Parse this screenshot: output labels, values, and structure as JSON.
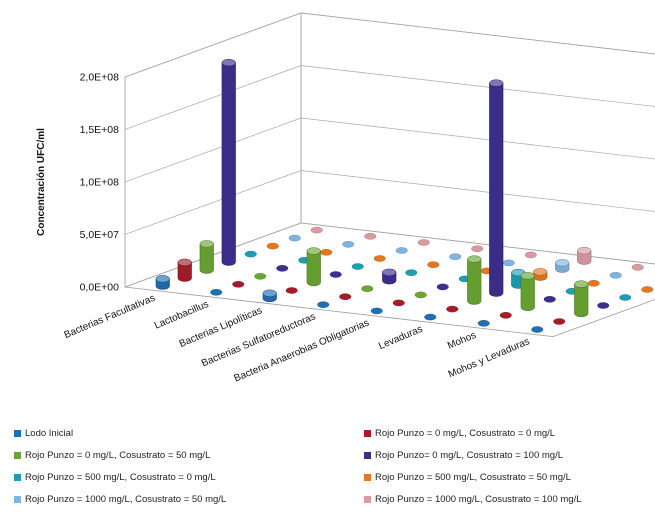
{
  "chart_data": {
    "type": "bar3d",
    "ylabel": "Concentración UFC/ml",
    "y_ticks": [
      "0,0E+00",
      "5,0E+07",
      "1,0E+08",
      "1,5E+08",
      "2,0E+08"
    ],
    "ylim": [
      0,
      200000000
    ],
    "categories": [
      "Bacterias Facultativas",
      "Lactobacillus",
      "Bacterias Lipolíticas",
      "Bacterias Sulfatoreductoras",
      "Bacteria Anaerobias Obligatorias",
      "Levaduras",
      "Mohos",
      "Mohos y Levaduras"
    ],
    "series": [
      {
        "name": "Lodo Inicial",
        "color": "#1f6fb5",
        "values": [
          7000000,
          0,
          5000000,
          0,
          0,
          0,
          0,
          0
        ]
      },
      {
        "name": "Rojo Punzo = 0 mg/L, Cosustrato = 0 mg/L",
        "color": "#a81c2a",
        "values": [
          15000000,
          0,
          0,
          0,
          0,
          0,
          0,
          0
        ]
      },
      {
        "name": "Rojo Punzo = 0 mg/L, Cosustrato = 50 mg/L",
        "color": "#6aa632",
        "values": [
          25000000,
          0,
          30000000,
          0,
          0,
          40000000,
          30000000,
          28000000
        ]
      },
      {
        "name": "Rojo Punzo= 0 mg/L, Cosustrato = 100 mg/L",
        "color": "#3c2f8f",
        "values": [
          190000000,
          0,
          0,
          8000000,
          0,
          200000000,
          0,
          0
        ]
      },
      {
        "name": "Rojo Punzo = 500 mg/L, Cosustrato = 0 mg/L",
        "color": "#1b9fb3",
        "values": [
          0,
          0,
          0,
          0,
          0,
          12000000,
          0,
          0
        ]
      },
      {
        "name": "Rojo Punzo = 500 mg/L, Cosustrato = 50 mg/L",
        "color": "#e8761e",
        "values": [
          0,
          0,
          0,
          0,
          0,
          5000000,
          0,
          0
        ]
      },
      {
        "name": "Rojo Punzo = 1000 mg/L, Cosustrato = 50 mg/L",
        "color": "#7fb4e0",
        "values": [
          0,
          0,
          0,
          0,
          0,
          6000000,
          0,
          0
        ]
      },
      {
        "name": "Rojo Punzo = 1000 mg/L, Cosustrato = 100 mg/L",
        "color": "#d99aa0",
        "values": [
          0,
          0,
          0,
          0,
          0,
          10000000,
          0,
          0
        ]
      }
    ]
  }
}
